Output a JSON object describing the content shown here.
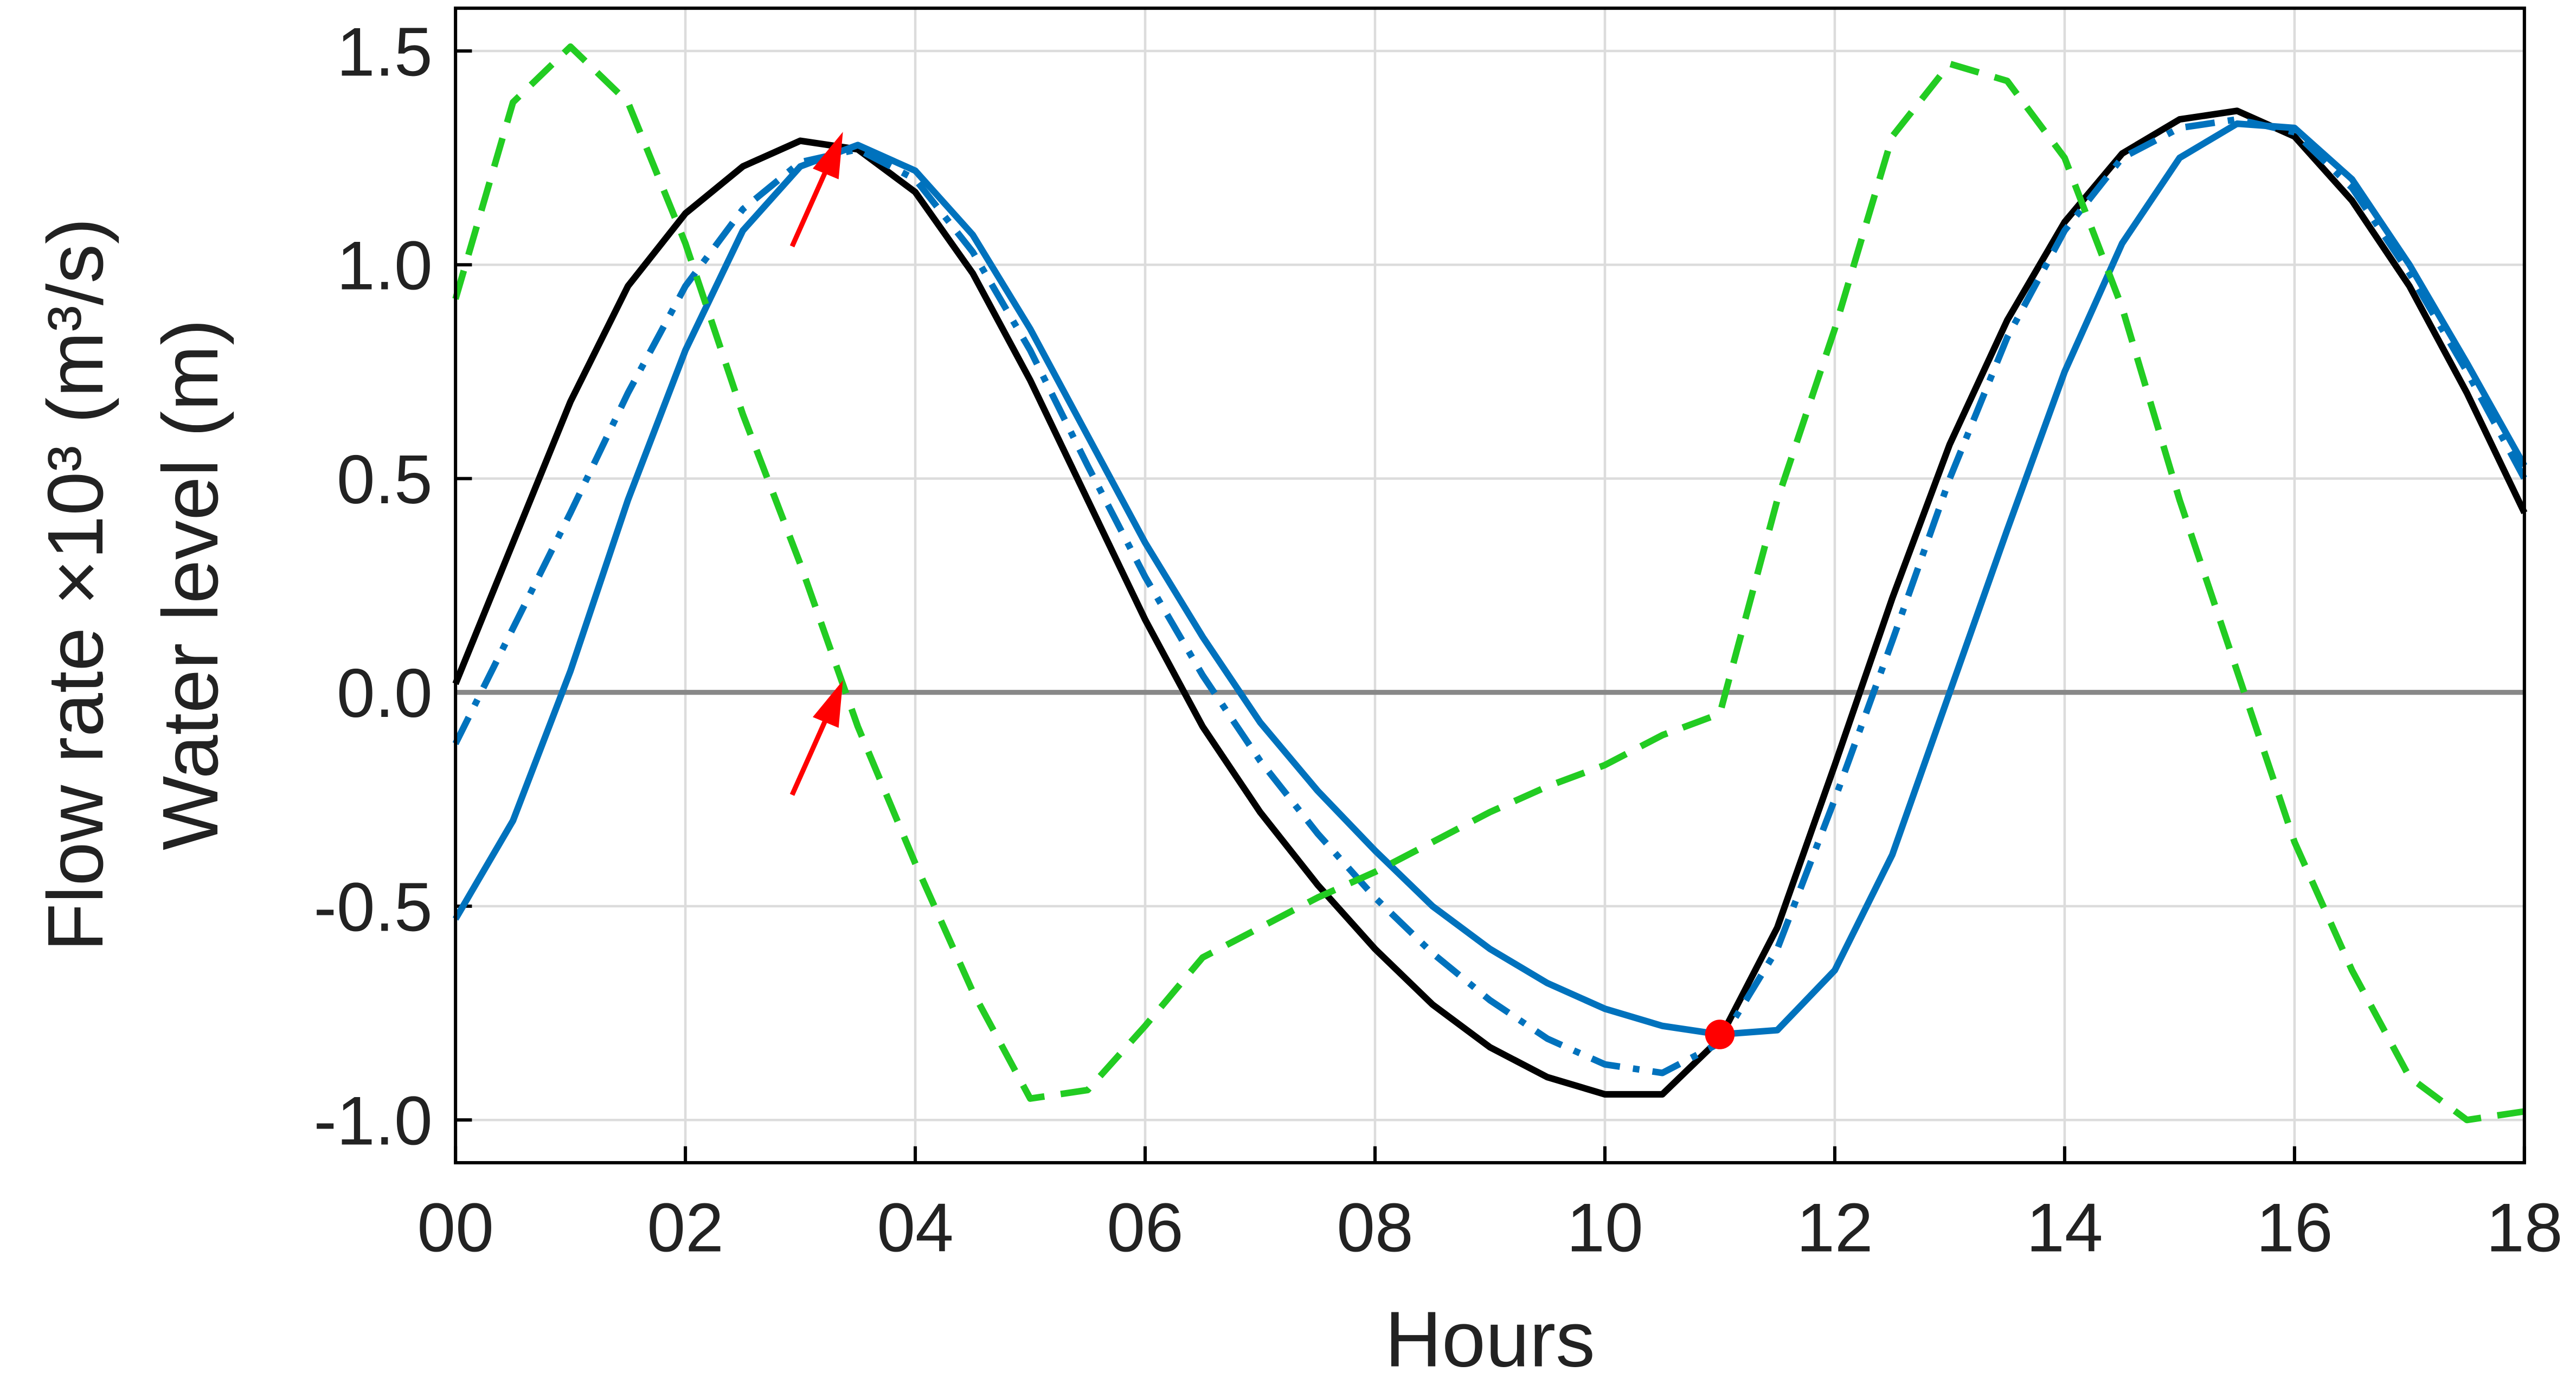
{
  "chart_data": {
    "type": "line",
    "xlabel": "Hours",
    "ylabel": [
      "Flow rate ×10³ (m³/s)",
      "Water level (m)"
    ],
    "x": [
      0,
      0.5,
      1,
      1.5,
      2,
      2.5,
      3,
      3.5,
      4,
      4.5,
      5,
      5.5,
      6,
      6.5,
      7,
      7.5,
      8,
      8.5,
      9,
      9.5,
      10,
      10.5,
      11,
      11.5,
      12,
      12.5,
      13,
      13.5,
      14,
      14.5,
      15,
      15.5,
      16,
      16.5,
      17,
      17.5,
      18
    ],
    "series": [
      {
        "color": "#000000",
        "style": "solid",
        "values": [
          0.02,
          0.35,
          0.68,
          0.95,
          1.12,
          1.23,
          1.29,
          1.27,
          1.17,
          0.98,
          0.73,
          0.45,
          0.17,
          -0.08,
          -0.28,
          -0.45,
          -0.6,
          -0.73,
          -0.83,
          -0.9,
          -0.94,
          -0.94,
          -0.81,
          -0.55,
          -0.17,
          0.22,
          0.58,
          0.87,
          1.1,
          1.26,
          1.34,
          1.36,
          1.3,
          1.15,
          0.95,
          0.7,
          0.42
        ]
      },
      {
        "color": "#0072bd",
        "style": "solid",
        "values": [
          -0.53,
          -0.3,
          0.05,
          0.45,
          0.8,
          1.08,
          1.23,
          1.28,
          1.22,
          1.07,
          0.85,
          0.6,
          0.35,
          0.13,
          -0.07,
          -0.23,
          -0.37,
          -0.5,
          -0.6,
          -0.68,
          -0.74,
          -0.78,
          -0.8,
          -0.79,
          -0.65,
          -0.38,
          0.0,
          0.38,
          0.75,
          1.05,
          1.25,
          1.33,
          1.32,
          1.2,
          1.0,
          0.77,
          0.53
        ]
      },
      {
        "color": "#0072bd",
        "style": "dashdot",
        "values": [
          -0.12,
          0.15,
          0.42,
          0.7,
          0.95,
          1.13,
          1.24,
          1.27,
          1.2,
          1.03,
          0.8,
          0.53,
          0.27,
          0.04,
          -0.16,
          -0.33,
          -0.48,
          -0.61,
          -0.72,
          -0.81,
          -0.87,
          -0.89,
          -0.82,
          -0.6,
          -0.25,
          0.12,
          0.5,
          0.83,
          1.08,
          1.25,
          1.32,
          1.34,
          1.31,
          1.18,
          0.98,
          0.75,
          0.5
        ]
      },
      {
        "color": "#22cc22",
        "style": "dashed",
        "values": [
          0.92,
          1.38,
          1.51,
          1.38,
          1.05,
          0.65,
          0.3,
          -0.08,
          -0.4,
          -0.7,
          -0.95,
          -0.93,
          -0.78,
          -0.62,
          -0.55,
          -0.48,
          -0.42,
          -0.35,
          -0.28,
          -0.22,
          -0.17,
          -0.1,
          -0.05,
          0.45,
          0.85,
          1.3,
          1.47,
          1.43,
          1.25,
          0.9,
          0.45,
          0.05,
          -0.35,
          -0.65,
          -0.9,
          -1.0,
          -0.98
        ]
      }
    ],
    "markers": [
      {
        "x": 11,
        "y": -0.8,
        "color": "#ff0000"
      }
    ],
    "reference_line": 0,
    "xlim": [
      0,
      18
    ],
    "xticks": [
      {
        "value": 0,
        "label": "00"
      },
      {
        "value": 2,
        "label": "02"
      },
      {
        "value": 4,
        "label": "04"
      },
      {
        "value": 6,
        "label": "06"
      },
      {
        "value": 8,
        "label": "08"
      },
      10,
      12,
      14,
      16,
      18
    ],
    "ylim": [
      -1.1,
      1.6
    ],
    "yticks": [
      {
        "value": -1,
        "label": "-1.0"
      },
      -0.5,
      {
        "value": 0,
        "label": "0.0"
      },
      0.5,
      {
        "value": 1,
        "label": "1.0"
      },
      1.5
    ],
    "grid": true
  }
}
